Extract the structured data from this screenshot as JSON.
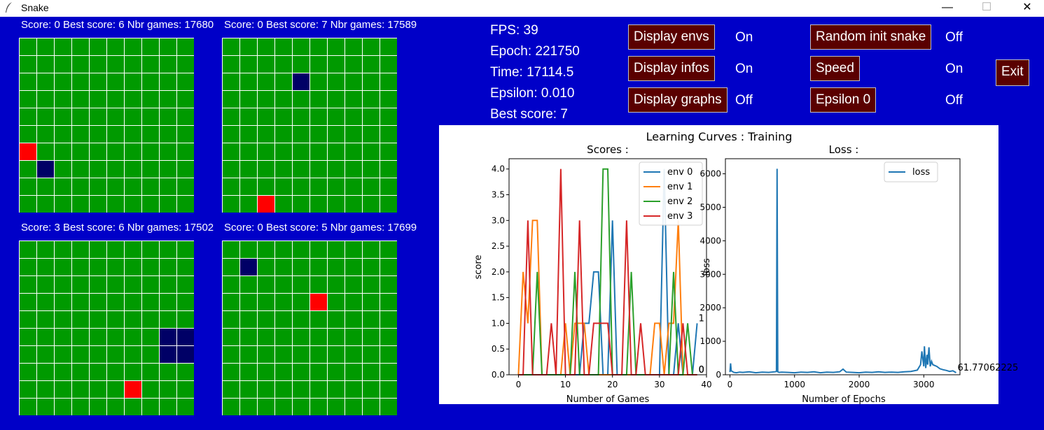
{
  "window": {
    "title": "Snake",
    "min_glyph": "—",
    "max_glyph": "☐",
    "close_glyph": "✕"
  },
  "envs": [
    {
      "label": "Score: 0 Best score: 6 Nbr games: 17680",
      "snake": [
        [
          1,
          7
        ]
      ],
      "food": [
        [
          0,
          6
        ]
      ]
    },
    {
      "label": "Score: 0 Best score: 7 Nbr games: 17589",
      "snake": [
        [
          4,
          2
        ]
      ],
      "food": [
        [
          2,
          9
        ]
      ]
    },
    {
      "label": "Score: 3 Best score: 6 Nbr games: 17502",
      "snake": [
        [
          8,
          5
        ],
        [
          9,
          5
        ],
        [
          8,
          6
        ],
        [
          9,
          6
        ]
      ],
      "food": [
        [
          6,
          8
        ]
      ]
    },
    {
      "label": "Score: 0 Best score: 5 Nbr games: 17699",
      "snake": [
        [
          1,
          1
        ]
      ],
      "food": [
        [
          5,
          3
        ]
      ]
    }
  ],
  "stats": {
    "fps": "FPS: 39",
    "epoch": "Epoch: 221750",
    "time": "Time: 17114.5",
    "epsilon": "Epsilon: 0.010",
    "best": "Best score: 7"
  },
  "controls": {
    "display_envs": "Display envs",
    "display_envs_state": "On",
    "display_infos": "Display infos",
    "display_infos_state": "On",
    "display_graphs": "Display graphs",
    "display_graphs_state": "Off",
    "random_init": "Random init snake",
    "random_init_state": "Off",
    "speed": "Speed",
    "speed_state": "On",
    "epsilon0": "Epsilon 0",
    "epsilon0_state": "Off",
    "exit": "Exit"
  },
  "colors": {
    "background": "#0000c8",
    "cell": "#009a00",
    "snake": "#000066",
    "food": "#ff0000",
    "button": "#5a0000"
  },
  "chart_data": [
    {
      "type": "line",
      "suptitle": "Learning Curves : Training",
      "title": "Scores :",
      "xlabel": "Number of Games",
      "ylabel": "score",
      "xlim": [
        -2,
        40
      ],
      "ylim": [
        0,
        4.2
      ],
      "xticks": [
        0,
        10,
        20,
        30,
        40
      ],
      "yticks": [
        0.0,
        0.5,
        1.0,
        1.5,
        2.0,
        2.5,
        3.0,
        3.5,
        4.0
      ],
      "legend": "top-right",
      "series": [
        {
          "name": "env 0",
          "color": "#1f77b4",
          "x": [
            0,
            1,
            2,
            3,
            4,
            5,
            6,
            7,
            8,
            9,
            10,
            11,
            12,
            13,
            14,
            15,
            16,
            17,
            18,
            19,
            20,
            21,
            22,
            23,
            24,
            25,
            26,
            27,
            28,
            29,
            30,
            31,
            32,
            33,
            34,
            35,
            36,
            37,
            38
          ],
          "y": [
            0,
            0,
            0,
            0,
            0,
            0,
            0,
            0,
            0,
            0,
            0,
            0,
            0,
            0,
            1,
            1,
            2,
            2,
            0,
            0,
            3,
            0,
            0,
            0,
            0,
            0,
            0,
            0,
            0,
            0,
            0,
            4,
            0,
            0,
            1,
            0,
            0,
            0,
            1
          ],
          "end_label": "1"
        },
        {
          "name": "env 1",
          "color": "#ff7f0e",
          "x": [
            0,
            1,
            2,
            3,
            4,
            5,
            6,
            7,
            8,
            9,
            10,
            11,
            12,
            13,
            14,
            15,
            16,
            17,
            18,
            19,
            20,
            21,
            22,
            23,
            24,
            25,
            26,
            27,
            28,
            29,
            30,
            31,
            32,
            33,
            34,
            35,
            36,
            37,
            38
          ],
          "y": [
            0,
            2,
            1,
            3,
            3,
            0,
            0,
            0,
            0,
            0,
            1,
            0,
            1,
            1,
            1,
            0,
            0,
            0,
            0,
            0,
            0,
            0,
            0,
            0,
            0,
            0,
            0,
            0,
            0,
            1,
            1,
            0,
            1,
            1,
            3,
            0,
            0,
            0,
            0
          ],
          "end_label": "0"
        },
        {
          "name": "env 2",
          "color": "#2ca02c",
          "x": [
            0,
            1,
            2,
            3,
            4,
            5,
            6,
            7,
            8,
            9,
            10,
            11,
            12,
            13,
            14,
            15,
            16,
            17,
            18,
            19,
            20,
            21,
            22,
            23,
            24,
            25,
            26,
            27,
            28,
            29,
            30,
            31,
            32,
            33,
            34,
            35,
            36,
            37,
            38
          ],
          "y": [
            0,
            0,
            0,
            0,
            2,
            0,
            0,
            0,
            0,
            0,
            0,
            0,
            2,
            0,
            0,
            0,
            0,
            0,
            4,
            4,
            0,
            0,
            0,
            0,
            2,
            0,
            0,
            0,
            0,
            0,
            0,
            0,
            0,
            2,
            0,
            0,
            1,
            0,
            0
          ],
          "end_label": "0"
        },
        {
          "name": "env 3",
          "color": "#d62728",
          "x": [
            0,
            1,
            2,
            3,
            4,
            5,
            6,
            7,
            8,
            9,
            10,
            11,
            12,
            13,
            14,
            15,
            16,
            17,
            18,
            19,
            20,
            21,
            22,
            23,
            24,
            25,
            26,
            27,
            28,
            29,
            30,
            31,
            32,
            33,
            34,
            35,
            36,
            37,
            38
          ],
          "y": [
            0,
            0,
            3,
            0,
            0,
            0,
            0,
            1,
            0,
            4,
            0,
            0,
            0,
            3,
            0,
            0,
            1,
            1,
            1,
            1,
            0,
            0,
            0,
            3,
            0,
            0,
            1,
            0,
            0,
            0,
            0,
            0,
            0,
            0,
            0,
            1,
            0,
            0,
            0
          ],
          "end_label": "0"
        }
      ]
    },
    {
      "type": "line",
      "title": "Loss :",
      "xlabel": "Number of Epochs",
      "ylabel": "loss",
      "xlim": [
        -70,
        3560
      ],
      "ylim": [
        0,
        6450
      ],
      "xticks": [
        0,
        1000,
        2000,
        3000
      ],
      "yticks": [
        0,
        1000,
        2000,
        3000,
        4000,
        5000,
        6000
      ],
      "legend": "top-right",
      "series": [
        {
          "name": "loss",
          "color": "#1f77b4",
          "x": [
            0,
            10,
            20,
            60,
            100,
            150,
            200,
            300,
            400,
            500,
            600,
            700,
            720,
            730,
            740,
            760,
            800,
            900,
            1000,
            1100,
            1200,
            1300,
            1400,
            1500,
            1600,
            1700,
            1750,
            1800,
            1900,
            2000,
            2100,
            2200,
            2300,
            2400,
            2500,
            2600,
            2700,
            2800,
            2900,
            2950,
            2970,
            3000,
            3010,
            3030,
            3050,
            3060,
            3080,
            3100,
            3120,
            3140,
            3200,
            3250,
            3300,
            3350,
            3400,
            3450,
            3500
          ],
          "y": [
            80,
            340,
            120,
            70,
            60,
            80,
            70,
            90,
            60,
            80,
            70,
            90,
            100,
            6150,
            90,
            70,
            80,
            70,
            60,
            80,
            70,
            90,
            60,
            80,
            70,
            90,
            170,
            80,
            70,
            60,
            80,
            70,
            90,
            70,
            80,
            70,
            90,
            100,
            140,
            300,
            700,
            250,
            850,
            200,
            600,
            300,
            820,
            250,
            400,
            300,
            250,
            180,
            150,
            130,
            100,
            120,
            62
          ],
          "end_label": "61.77062225"
        }
      ]
    }
  ]
}
